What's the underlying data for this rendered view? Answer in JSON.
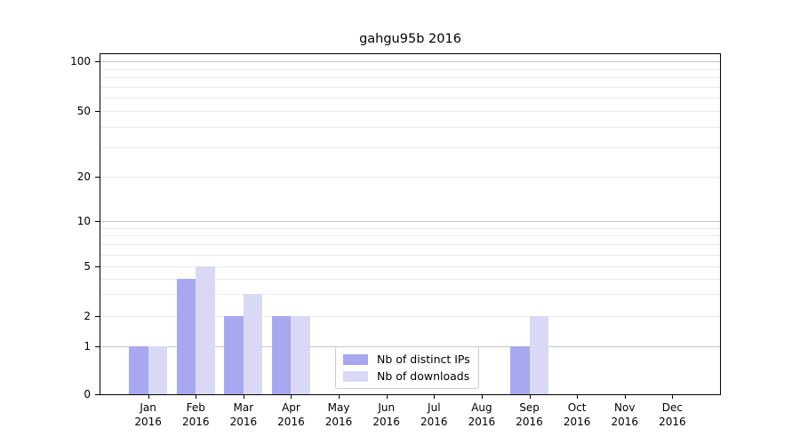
{
  "chart_data": {
    "type": "bar",
    "title": "gahgu95b 2016",
    "x_months": [
      "Jan",
      "Feb",
      "Mar",
      "Apr",
      "May",
      "Jun",
      "Jul",
      "Aug",
      "Sep",
      "Oct",
      "Nov",
      "Dec"
    ],
    "x_year": "2016",
    "series": [
      {
        "name": "Nb of distinct IPs",
        "color": "#a8a8f0",
        "values": [
          1,
          4,
          2,
          2,
          0,
          0,
          0,
          0,
          1,
          0,
          0,
          0
        ]
      },
      {
        "name": "Nb of downloads",
        "color": "#d9d9f6",
        "values": [
          1,
          5,
          3,
          2,
          0,
          0,
          0,
          0,
          2,
          0,
          0,
          0
        ]
      }
    ],
    "y_axis": {
      "scale": "log (linear segment below 1)",
      "tick_values": [
        100,
        50,
        20,
        10,
        5,
        2,
        1,
        0
      ],
      "tick_labels": [
        "100",
        "50",
        "20",
        "10",
        "5",
        "2",
        "1",
        "0"
      ],
      "major_gridlines": [
        1,
        10,
        100
      ],
      "minor_gridlines": [
        2,
        3,
        4,
        5,
        6,
        7,
        8,
        9,
        20,
        30,
        40,
        50,
        60,
        70,
        80,
        90
      ],
      "ylim": [
        0,
        115
      ]
    },
    "grid": "horizontal only",
    "legend_position": "inside, lower center-right"
  },
  "colors": {
    "background": "#ffffff",
    "axis": "#000000",
    "grid_major": "#c6c6c6",
    "grid_minor": "#ebebeb",
    "text": "#000000",
    "legend_border": "#cccccc"
  }
}
